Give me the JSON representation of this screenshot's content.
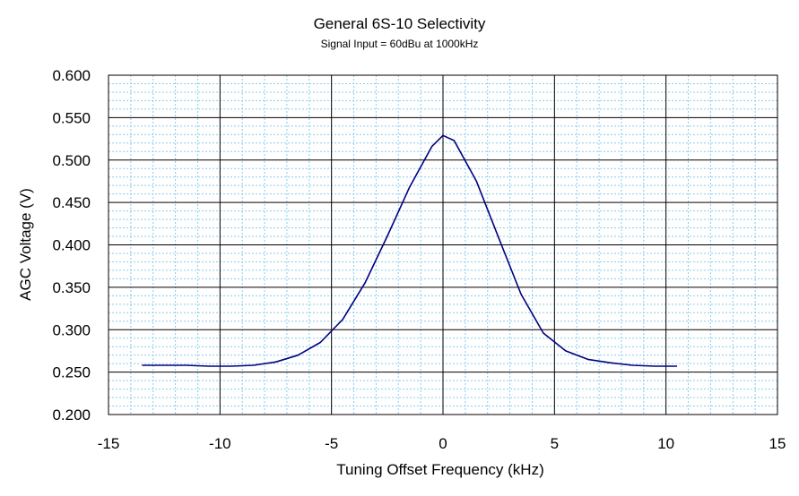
{
  "chart_data": {
    "type": "line",
    "title": "General 6S-10 Selectivity",
    "subtitle": "Signal Input = 60dBu at 1000kHz",
    "xlabel": "Tuning Offset Frequency (kHz)",
    "ylabel": "AGC Voltage (V)",
    "xlim": [
      -15,
      15
    ],
    "ylim": [
      0.2,
      0.6
    ],
    "x_ticks": [
      "-15",
      "-10",
      "-5",
      "0",
      "5",
      "10",
      "15"
    ],
    "y_ticks": [
      "0.200",
      "0.250",
      "0.300",
      "0.350",
      "0.400",
      "0.450",
      "0.500",
      "0.550",
      "0.600"
    ],
    "grid": true,
    "legend": "none",
    "colors": {
      "line": "#000080",
      "major_grid": "#000000",
      "minor_grid": "#87ceeb"
    },
    "series": [
      {
        "x": [
          -13.5,
          -11.5,
          -10.5,
          -9.5,
          -8.5,
          -7.5,
          -6.5,
          -5.5,
          -4.5,
          -3.5,
          -2.5,
          -1.5,
          -0.5,
          0,
          0.5,
          1.5,
          2.5,
          3.5,
          4.5,
          5.5,
          6.5,
          7.5,
          8.5,
          9.5,
          10.5
        ],
        "y": [
          0.258,
          0.258,
          0.257,
          0.257,
          0.258,
          0.262,
          0.27,
          0.285,
          0.312,
          0.355,
          0.41,
          0.468,
          0.516,
          0.529,
          0.523,
          0.475,
          0.408,
          0.342,
          0.296,
          0.275,
          0.265,
          0.261,
          0.258,
          0.257,
          0.257
        ]
      }
    ]
  }
}
